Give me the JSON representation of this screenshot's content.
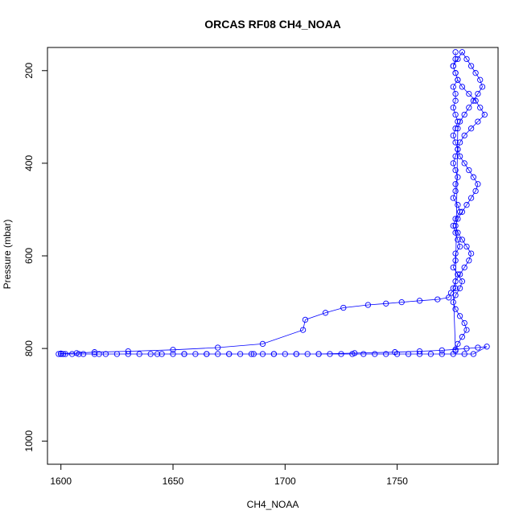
{
  "chart_data": {
    "type": "line",
    "title": "ORCAS RF08 CH4_NOAA",
    "xlabel": "CH4_NOAA",
    "ylabel": "Pressure (mbar)",
    "xlim": [
      1594,
      1795
    ],
    "ylim": [
      1050,
      150
    ],
    "y_reversed": true,
    "x_ticks": [
      1600,
      1650,
      1700,
      1750
    ],
    "y_ticks": [
      200,
      400,
      600,
      800,
      1000
    ],
    "grid": false,
    "series_color": "#0000ff",
    "marker": "open-circle",
    "series": [
      {
        "x": [
          1776,
          1776,
          1775,
          1776,
          1777,
          1775,
          1776,
          1776,
          1775,
          1776,
          1777,
          1776,
          1775,
          1776,
          1777,
          1776,
          1775,
          1776,
          1777,
          1776,
          1776,
          1775,
          1777,
          1778,
          1776,
          1775,
          1776,
          1777,
          1778,
          1776,
          1776,
          1775,
          1777,
          1779,
          1778,
          1776,
          1775,
          1776,
          1778,
          1780,
          1781,
          1779,
          1777,
          1776,
          1775,
          1776,
          1778,
          1780,
          1782,
          1783,
          1781,
          1779,
          1777,
          1776,
          1777,
          1779,
          1781,
          1783,
          1785,
          1786,
          1784,
          1782,
          1780,
          1778,
          1777,
          1778,
          1780,
          1783,
          1786,
          1789,
          1787,
          1785,
          1782,
          1779,
          1777,
          1776,
          1775,
          1777,
          1779,
          1781,
          1783,
          1785,
          1787,
          1788,
          1786,
          1784,
          1782,
          1780,
          1778,
          1777,
          1776,
          1774,
          1773,
          1768,
          1760,
          1752,
          1745,
          1737,
          1726,
          1718,
          1709,
          1708,
          1690,
          1670,
          1650,
          1630,
          1615,
          1607,
          1600,
          1599,
          1601,
          1608,
          1617,
          1643,
          1655,
          1665,
          1675,
          1686,
          1695,
          1705,
          1715,
          1731,
          1749,
          1760,
          1770,
          1776,
          1781,
          1786,
          1790,
          1784,
          1780,
          1775,
          1770,
          1765,
          1760,
          1755,
          1750,
          1745,
          1740,
          1735,
          1730,
          1725,
          1720,
          1715,
          1710,
          1705,
          1700,
          1695,
          1690,
          1685,
          1680,
          1675,
          1670,
          1665,
          1660,
          1655,
          1650,
          1645,
          1640,
          1635,
          1630,
          1625,
          1620,
          1615,
          1610,
          1605,
          1602,
          1600
        ],
        "y": [
          160,
          175,
          190,
          205,
          220,
          235,
          250,
          265,
          280,
          295,
          310,
          325,
          340,
          355,
          370,
          385,
          400,
          415,
          430,
          445,
          460,
          475,
          490,
          505,
          520,
          535,
          550,
          565,
          580,
          595,
          610,
          625,
          640,
          655,
          670,
          685,
          700,
          715,
          730,
          745,
          760,
          775,
          790,
          805,
          670,
          655,
          640,
          625,
          610,
          595,
          580,
          565,
          550,
          535,
          520,
          505,
          490,
          475,
          460,
          445,
          430,
          415,
          400,
          385,
          370,
          355,
          340,
          325,
          310,
          295,
          280,
          265,
          250,
          235,
          220,
          205,
          190,
          175,
          160,
          175,
          190,
          205,
          220,
          235,
          250,
          265,
          280,
          295,
          310,
          325,
          670,
          680,
          690,
          694,
          697,
          700,
          703,
          706,
          712,
          723,
          738,
          760,
          790,
          798,
          803,
          806,
          808,
          810,
          811,
          812,
          812,
          812,
          812,
          812,
          812,
          812,
          812,
          812,
          812,
          812,
          812,
          810,
          808,
          806,
          804,
          802,
          800,
          798,
          796,
          812,
          812,
          812,
          812,
          812,
          812,
          812,
          812,
          812,
          812,
          812,
          812,
          812,
          812,
          812,
          812,
          812,
          812,
          812,
          812,
          812,
          812,
          812,
          812,
          812,
          812,
          812,
          812,
          812,
          812,
          812,
          812,
          812,
          812,
          812,
          812,
          812,
          812,
          812
        ]
      }
    ]
  }
}
